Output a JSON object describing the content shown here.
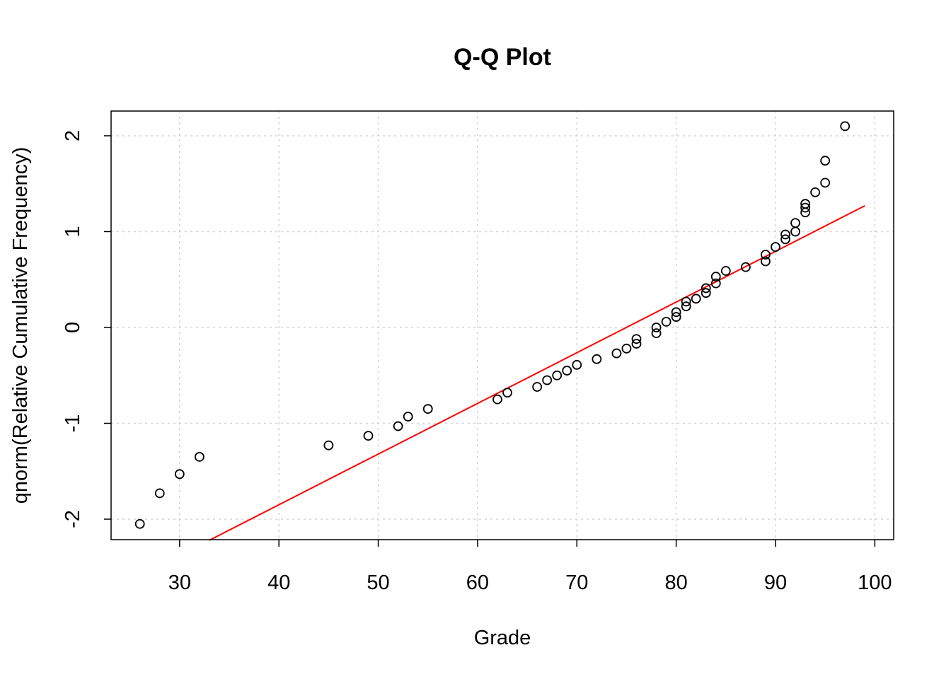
{
  "chart_data": {
    "type": "scatter",
    "title": "Q-Q Plot",
    "xlabel": "Grade",
    "ylabel": "qnorm(Relative Cumulative Frequency)",
    "xlim": [
      23.1,
      101.9
    ],
    "ylim": [
      -2.214,
      2.258
    ],
    "xticks": [
      30,
      40,
      50,
      60,
      70,
      80,
      90,
      100
    ],
    "yticks": [
      -2,
      -1,
      0,
      1,
      2
    ],
    "grid": true,
    "point_color": "#000000",
    "line_color": "#ff0000",
    "reference_line": {
      "x": [
        33,
        99
      ],
      "y": [
        -2.22,
        1.27
      ]
    },
    "points": [
      [
        26,
        -2.05
      ],
      [
        28,
        -1.73
      ],
      [
        30,
        -1.53
      ],
      [
        32,
        -1.35
      ],
      [
        45,
        -1.23
      ],
      [
        49,
        -1.13
      ],
      [
        52,
        -1.03
      ],
      [
        53,
        -0.93
      ],
      [
        55,
        -0.85
      ],
      [
        62,
        -0.75
      ],
      [
        63,
        -0.68
      ],
      [
        66,
        -0.62
      ],
      [
        67,
        -0.55
      ],
      [
        68,
        -0.5
      ],
      [
        69,
        -0.45
      ],
      [
        70,
        -0.39
      ],
      [
        72,
        -0.33
      ],
      [
        74,
        -0.27
      ],
      [
        75,
        -0.22
      ],
      [
        76,
        -0.17
      ],
      [
        76,
        -0.12
      ],
      [
        78,
        -0.06
      ],
      [
        78,
        0.0
      ],
      [
        79,
        0.06
      ],
      [
        80,
        0.11
      ],
      [
        80,
        0.16
      ],
      [
        81,
        0.22
      ],
      [
        81,
        0.27
      ],
      [
        82,
        0.3
      ],
      [
        83,
        0.36
      ],
      [
        83,
        0.41
      ],
      [
        84,
        0.46
      ],
      [
        84,
        0.53
      ],
      [
        85,
        0.59
      ],
      [
        87,
        0.63
      ],
      [
        89,
        0.69
      ],
      [
        89,
        0.76
      ],
      [
        90,
        0.84
      ],
      [
        91,
        0.92
      ],
      [
        91,
        0.97
      ],
      [
        92,
        1.0
      ],
      [
        92,
        1.09
      ],
      [
        93,
        1.2
      ],
      [
        93,
        1.25
      ],
      [
        93,
        1.29
      ],
      [
        94,
        1.41
      ],
      [
        95,
        1.51
      ],
      [
        95,
        1.74
      ],
      [
        97,
        2.1
      ]
    ]
  }
}
